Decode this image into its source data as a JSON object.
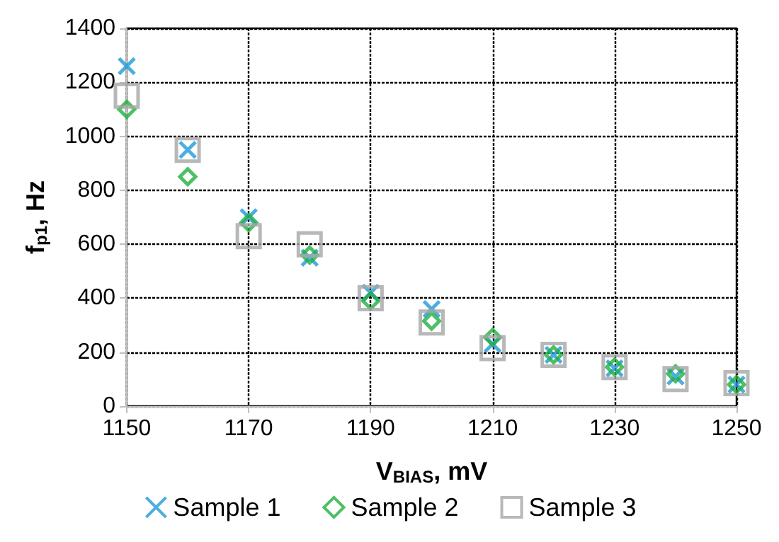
{
  "chart_data": {
    "type": "scatter",
    "xlabel": "V$_{BIAS}$, mV",
    "ylabel": "f$_{p1}$, Hz",
    "x": [
      1150,
      1160,
      1170,
      1180,
      1190,
      1200,
      1210,
      1220,
      1230,
      1240,
      1250
    ],
    "series": [
      {
        "name": "Sample 1",
        "color": "#1f9ad6",
        "marker": "cross",
        "values": [
          1260,
          950,
          700,
          550,
          420,
          360,
          230,
          190,
          140,
          110,
          80
        ]
      },
      {
        "name": "Sample 2",
        "color": "#1fb040",
        "marker": "diamond",
        "values": [
          1100,
          850,
          680,
          560,
          390,
          315,
          255,
          190,
          145,
          120,
          80
        ]
      },
      {
        "name": "Sample 3",
        "color": "#a6a6a6",
        "marker": "square",
        "values": [
          1150,
          950,
          630,
          600,
          400,
          310,
          215,
          190,
          145,
          100,
          85
        ]
      }
    ],
    "xlim": [
      1150,
      1250
    ],
    "xticks": [
      1150,
      1170,
      1190,
      1210,
      1230,
      1250
    ],
    "ylim": [
      0,
      1400
    ],
    "yticks": [
      0,
      200,
      400,
      600,
      800,
      1000,
      1200,
      1400
    ],
    "grid": true,
    "legend": "bottom"
  }
}
